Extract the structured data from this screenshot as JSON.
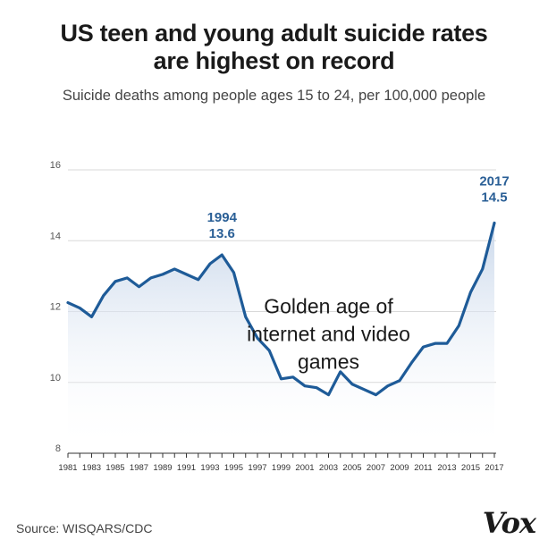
{
  "header": {
    "title_line1": "US teen and young adult suicide rates",
    "title_line2": "are highest on record",
    "subtitle": "Suicide deaths among people ages 15 to 24, per 100,000 people"
  },
  "footer": {
    "source": "Source: WISQARS/CDC",
    "brand": "Vox"
  },
  "colors": {
    "line": "#1e5b98",
    "area_top": "#c7d6ea",
    "label": "#2a5f96",
    "grid": "#d9d9d9"
  },
  "chart_data": {
    "type": "area",
    "title": "US teen and young adult suicide rates are highest on record",
    "subtitle": "Suicide deaths among people ages 15 to 24, per 100,000 people",
    "xlabel": "",
    "ylabel": "",
    "xlim": [
      1981,
      2017
    ],
    "ylim": [
      8,
      16
    ],
    "grid": true,
    "legend": "none",
    "y_ticks": [
      8,
      10,
      12,
      14,
      16
    ],
    "x_ticks": [
      1981,
      1983,
      1985,
      1987,
      1989,
      1991,
      1993,
      1995,
      1997,
      1999,
      2001,
      2003,
      2005,
      2007,
      2009,
      2011,
      2013,
      2015,
      2017
    ],
    "x": [
      1981,
      1982,
      1983,
      1984,
      1985,
      1986,
      1987,
      1988,
      1989,
      1990,
      1991,
      1992,
      1993,
      1994,
      1995,
      1996,
      1997,
      1998,
      1999,
      2000,
      2001,
      2002,
      2003,
      2004,
      2005,
      2006,
      2007,
      2008,
      2009,
      2010,
      2011,
      2012,
      2013,
      2014,
      2015,
      2016,
      2017
    ],
    "series": [
      {
        "values": [
          12.25,
          12.1,
          11.85,
          12.45,
          12.85,
          12.95,
          12.7,
          12.95,
          13.05,
          13.2,
          13.05,
          12.9,
          13.35,
          13.6,
          13.1,
          11.85,
          11.25,
          10.9,
          10.1,
          10.15,
          9.9,
          9.85,
          9.65,
          10.3,
          9.95,
          9.8,
          9.65,
          9.9,
          10.05,
          10.55,
          11.0,
          11.1,
          11.1,
          11.6,
          12.55,
          13.2,
          14.5
        ]
      }
    ],
    "annotations": [
      {
        "id": "peak-1994",
        "x": 1994,
        "y": 13.6,
        "year_text": "1994",
        "value_text": "13.6"
      },
      {
        "id": "peak-2017",
        "x": 2017,
        "y": 14.5,
        "year_text": "2017",
        "value_text": "14.5"
      },
      {
        "id": "note",
        "x": 2003,
        "y": 11.45,
        "lines": [
          "Golden age of",
          "internet and video",
          "games"
        ]
      }
    ]
  }
}
